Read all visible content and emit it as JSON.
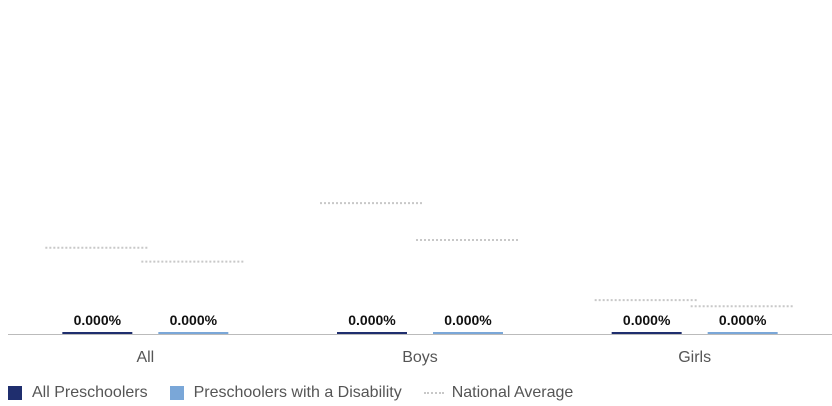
{
  "colors": {
    "all_preschoolers": "#1f2e6e",
    "with_disability": "#7aa7d8",
    "national_average": "#c8c8c8",
    "axis": "#bbbbbb"
  },
  "chart_data": {
    "type": "bar",
    "categories": [
      "All",
      "Boys",
      "Girls"
    ],
    "series": [
      {
        "name": "All Preschoolers",
        "values": [
          0.0,
          0.0,
          0.0
        ],
        "labels": [
          "0.000%",
          "0.000%",
          "0.000%"
        ],
        "national_average": [
          0.56,
          0.85,
          0.22
        ]
      },
      {
        "name": "Preschoolers with a Disability",
        "values": [
          0.0,
          0.0,
          0.0
        ],
        "labels": [
          "0.000%",
          "0.000%",
          "0.000%"
        ],
        "national_average": [
          0.47,
          0.61,
          0.18
        ]
      }
    ],
    "reference_series_name": "National Average",
    "grid": false,
    "legend_position": "bottom-left"
  }
}
